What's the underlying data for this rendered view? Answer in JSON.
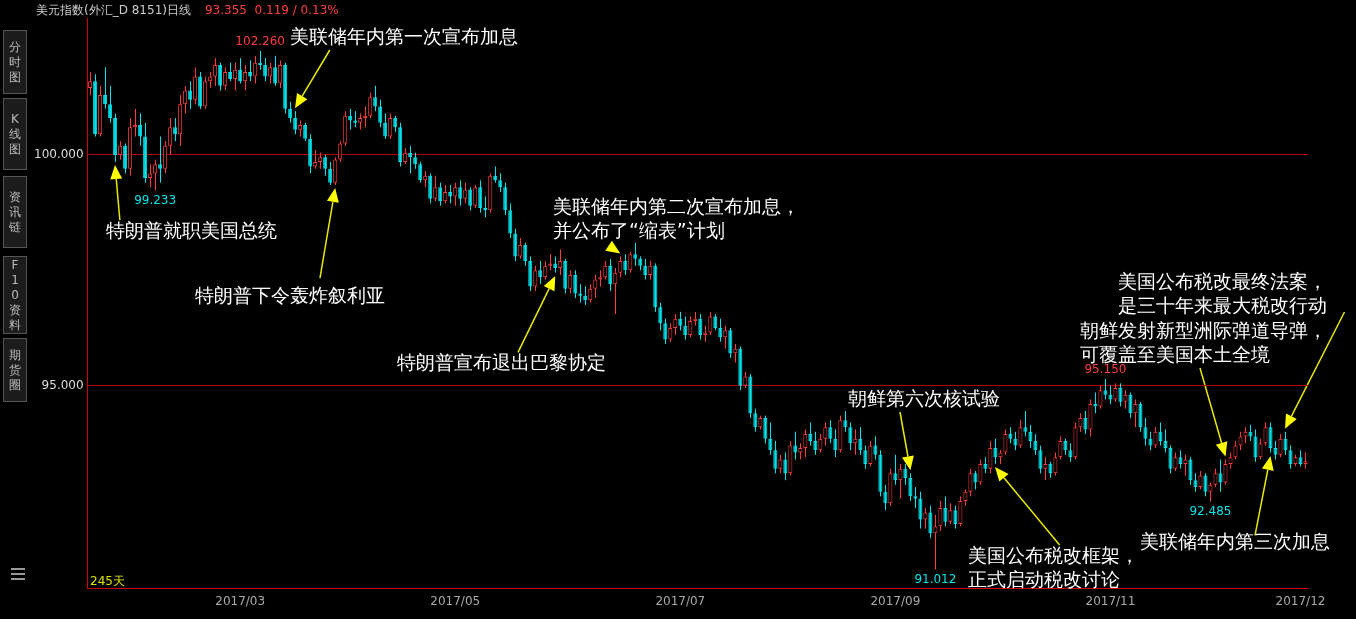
{
  "chart_data": {
    "type": "candlestick",
    "title": "美元指数(外汇_D 8151)日线",
    "subtitle": "93.355  0.119 / 0.13%",
    "categories": [
      null,
      null,
      null,
      null,
      null,
      null,
      null,
      null,
      null,
      null,
      null,
      null,
      null,
      null,
      null,
      null,
      null,
      null,
      null,
      null,
      null,
      null,
      null,
      null,
      null,
      null,
      null,
      null,
      null,
      null,
      "2017/03",
      null,
      null,
      null,
      null,
      null,
      null,
      null,
      null,
      null,
      null,
      null,
      null,
      null,
      null,
      null,
      null,
      null,
      null,
      null,
      null,
      null,
      null,
      null,
      null,
      null,
      null,
      null,
      null,
      null,
      null,
      null,
      null,
      null,
      null,
      null,
      null,
      null,
      null,
      null,
      null,
      null,
      null,
      "2017/05",
      null,
      null,
      null,
      null,
      null,
      null,
      null,
      null,
      null,
      null,
      null,
      null,
      null,
      null,
      null,
      null,
      null,
      null,
      null,
      null,
      null,
      null,
      null,
      null,
      null,
      null,
      null,
      null,
      null,
      null,
      null,
      null,
      null,
      null,
      null,
      null,
      null,
      null,
      null,
      null,
      null,
      null,
      null,
      null,
      "2017/07",
      null,
      null,
      null,
      null,
      null,
      null,
      null,
      null,
      null,
      null,
      null,
      null,
      null,
      null,
      null,
      null,
      null,
      null,
      null,
      null,
      null,
      null,
      null,
      null,
      null,
      null,
      null,
      null,
      null,
      null,
      null,
      null,
      null,
      null,
      null,
      null,
      null,
      null,
      null,
      null,
      null,
      null,
      "2017/09",
      null,
      null,
      null,
      null,
      null,
      null,
      null,
      null,
      null,
      null,
      null,
      null,
      null,
      null,
      null,
      null,
      null,
      null,
      null,
      null,
      null,
      null,
      null,
      null,
      null,
      null,
      null,
      null,
      null,
      null,
      null,
      null,
      null,
      null,
      null,
      null,
      null,
      null,
      null,
      null,
      null,
      null,
      "2017/11",
      null,
      null,
      null,
      null,
      null,
      null,
      null,
      null,
      null,
      null,
      null,
      null,
      null,
      null,
      null,
      null,
      null,
      null,
      null,
      null,
      null,
      null,
      null,
      null,
      null,
      null,
      null,
      null,
      null,
      null,
      null,
      null,
      null,
      null,
      null,
      null,
      null,
      "2017/12",
      null
    ],
    "ohlc": [
      [
        101.45,
        101.8,
        101.3,
        101.6
      ],
      [
        101.6,
        101.75,
        100.4,
        100.45
      ],
      [
        100.45,
        101.5,
        100.4,
        101.3
      ],
      [
        101.3,
        101.9,
        101.0,
        101.1
      ],
      [
        101.1,
        101.5,
        100.7,
        100.8
      ],
      [
        100.8,
        100.9,
        99.85,
        100.0
      ],
      [
        100.0,
        100.3,
        99.9,
        100.2
      ],
      [
        100.2,
        100.25,
        99.6,
        99.7
      ],
      [
        99.7,
        100.8,
        99.55,
        100.6
      ],
      [
        100.6,
        101.0,
        100.4,
        100.65
      ],
      [
        100.65,
        100.9,
        100.2,
        100.4
      ],
      [
        100.4,
        100.7,
        99.4,
        99.5
      ],
      [
        99.5,
        99.8,
        99.3,
        99.6
      ],
      [
        99.6,
        99.9,
        99.233,
        99.8
      ],
      [
        99.8,
        100.4,
        99.4,
        99.7
      ],
      [
        99.7,
        100.3,
        99.6,
        100.2
      ],
      [
        100.2,
        100.8,
        100.0,
        100.6
      ],
      [
        100.6,
        100.8,
        100.3,
        100.45
      ],
      [
        100.45,
        101.3,
        100.2,
        101.1
      ],
      [
        101.1,
        101.5,
        100.9,
        101.4
      ],
      [
        101.4,
        101.6,
        101.0,
        101.2
      ],
      [
        101.2,
        101.9,
        101.1,
        101.7
      ],
      [
        101.7,
        101.8,
        101.0,
        101.05
      ],
      [
        101.05,
        101.7,
        101.0,
        101.6
      ],
      [
        101.6,
        101.8,
        101.45,
        101.7
      ],
      [
        101.7,
        102.1,
        101.5,
        101.95
      ],
      [
        101.95,
        102.0,
        101.4,
        101.5
      ],
      [
        101.5,
        101.9,
        101.4,
        101.8
      ],
      [
        101.8,
        102.0,
        101.6,
        101.65
      ],
      [
        101.65,
        102.0,
        101.4,
        101.85
      ],
      [
        101.85,
        102.1,
        101.55,
        101.6
      ],
      [
        101.6,
        101.95,
        101.4,
        101.8
      ],
      [
        101.8,
        102.05,
        101.6,
        101.7
      ],
      [
        101.7,
        102.15,
        101.55,
        102.0
      ],
      [
        102.0,
        102.26,
        101.85,
        101.95
      ],
      [
        101.95,
        102.1,
        101.6,
        101.7
      ],
      [
        101.7,
        102.0,
        101.55,
        101.9
      ],
      [
        101.9,
        102.15,
        101.5,
        101.55
      ],
      [
        101.55,
        102.05,
        101.45,
        101.95
      ],
      [
        101.95,
        102.0,
        100.9,
        101.0
      ],
      [
        101.0,
        101.15,
        100.7,
        100.8
      ],
      [
        100.8,
        100.95,
        100.45,
        100.55
      ],
      [
        100.55,
        100.75,
        100.4,
        100.65
      ],
      [
        100.65,
        100.7,
        100.3,
        100.35
      ],
      [
        100.35,
        100.45,
        99.6,
        99.75
      ],
      [
        99.75,
        100.1,
        99.7,
        99.85
      ],
      [
        99.85,
        100.05,
        99.7,
        99.95
      ],
      [
        99.95,
        100.0,
        99.55,
        99.7
      ],
      [
        99.7,
        99.85,
        99.35,
        99.4
      ],
      [
        99.4,
        99.95,
        99.35,
        99.9
      ],
      [
        99.9,
        100.3,
        99.85,
        100.25
      ],
      [
        100.25,
        100.95,
        100.2,
        100.85
      ],
      [
        100.85,
        101.0,
        100.55,
        100.75
      ],
      [
        100.75,
        100.95,
        100.6,
        100.7
      ],
      [
        100.7,
        100.9,
        100.55,
        100.8
      ],
      [
        100.8,
        101.05,
        100.6,
        100.85
      ],
      [
        100.85,
        101.35,
        100.8,
        101.25
      ],
      [
        101.25,
        101.5,
        100.95,
        101.05
      ],
      [
        101.05,
        101.2,
        100.6,
        100.7
      ],
      [
        100.7,
        100.9,
        100.35,
        100.4
      ],
      [
        100.4,
        100.9,
        100.35,
        100.8
      ],
      [
        100.8,
        100.85,
        100.5,
        100.6
      ],
      [
        100.6,
        100.7,
        99.75,
        99.85
      ],
      [
        99.85,
        100.15,
        99.8,
        100.05
      ],
      [
        100.05,
        100.2,
        99.6,
        99.95
      ],
      [
        99.95,
        100.05,
        99.7,
        99.8
      ],
      [
        99.8,
        99.85,
        99.4,
        99.45
      ],
      [
        99.45,
        99.65,
        99.3,
        99.55
      ],
      [
        99.55,
        99.6,
        98.95,
        99.05
      ],
      [
        99.05,
        99.55,
        99.0,
        99.3
      ],
      [
        99.3,
        99.4,
        98.9,
        99.0
      ],
      [
        99.0,
        99.35,
        98.95,
        99.2
      ],
      [
        99.2,
        99.35,
        98.95,
        99.1
      ],
      [
        99.1,
        99.4,
        98.9,
        99.3
      ],
      [
        99.3,
        99.45,
        98.9,
        99.05
      ],
      [
        99.05,
        99.4,
        98.95,
        99.25
      ],
      [
        99.25,
        99.3,
        98.8,
        98.9
      ],
      [
        98.9,
        99.35,
        98.85,
        99.3
      ],
      [
        99.3,
        99.45,
        98.75,
        98.85
      ],
      [
        98.85,
        99.1,
        98.65,
        98.8
      ],
      [
        98.8,
        99.6,
        98.75,
        99.55
      ],
      [
        99.55,
        99.75,
        99.4,
        99.45
      ],
      [
        99.45,
        99.6,
        99.2,
        99.3
      ],
      [
        99.3,
        99.4,
        98.7,
        98.8
      ],
      [
        98.8,
        98.95,
        98.2,
        98.3
      ],
      [
        98.3,
        98.4,
        97.7,
        97.8
      ],
      [
        97.8,
        98.2,
        97.75,
        98.05
      ],
      [
        98.05,
        98.1,
        97.6,
        97.7
      ],
      [
        97.7,
        97.8,
        97.05,
        97.15
      ],
      [
        97.15,
        97.6,
        97.05,
        97.5
      ],
      [
        97.5,
        97.7,
        97.2,
        97.35
      ],
      [
        97.35,
        97.7,
        97.3,
        97.6
      ],
      [
        97.6,
        97.85,
        97.5,
        97.65
      ],
      [
        97.65,
        97.8,
        97.45,
        97.55
      ],
      [
        97.55,
        97.95,
        97.4,
        97.7
      ],
      [
        97.7,
        97.75,
        97.0,
        97.1
      ],
      [
        97.1,
        97.5,
        97.0,
        97.4
      ],
      [
        97.4,
        97.5,
        96.9,
        97.0
      ],
      [
        97.0,
        97.2,
        96.8,
        96.95
      ],
      [
        96.95,
        97.15,
        96.75,
        96.85
      ],
      [
        96.85,
        97.2,
        96.8,
        97.1
      ],
      [
        97.1,
        97.4,
        96.9,
        97.3
      ],
      [
        97.3,
        97.5,
        97.15,
        97.35
      ],
      [
        97.35,
        97.7,
        97.3,
        97.6
      ],
      [
        97.6,
        97.75,
        97.05,
        97.2
      ],
      [
        97.2,
        97.55,
        96.55,
        97.45
      ],
      [
        97.45,
        97.8,
        97.35,
        97.7
      ],
      [
        97.7,
        97.85,
        97.4,
        97.5
      ],
      [
        97.5,
        97.9,
        97.45,
        97.85
      ],
      [
        97.85,
        98.1,
        97.6,
        97.75
      ],
      [
        97.75,
        97.8,
        97.5,
        97.6
      ],
      [
        97.6,
        97.75,
        97.3,
        97.4
      ],
      [
        97.4,
        97.7,
        97.3,
        97.6
      ],
      [
        97.6,
        97.65,
        96.6,
        96.7
      ],
      [
        96.7,
        96.8,
        96.2,
        96.35
      ],
      [
        96.35,
        96.45,
        95.9,
        96.0
      ],
      [
        96.0,
        96.35,
        95.95,
        96.25
      ],
      [
        96.25,
        96.55,
        96.1,
        96.45
      ],
      [
        96.45,
        96.6,
        96.2,
        96.3
      ],
      [
        96.3,
        96.5,
        96.0,
        96.1
      ],
      [
        96.1,
        96.5,
        96.05,
        96.4
      ],
      [
        96.4,
        96.6,
        96.3,
        96.45
      ],
      [
        96.45,
        96.55,
        96.0,
        96.1
      ],
      [
        96.1,
        96.3,
        95.95,
        96.15
      ],
      [
        96.15,
        96.6,
        96.1,
        96.5
      ],
      [
        96.5,
        96.55,
        96.2,
        96.25
      ],
      [
        96.25,
        96.45,
        95.95,
        96.05
      ],
      [
        96.05,
        96.3,
        95.8,
        96.2
      ],
      [
        96.2,
        96.25,
        95.6,
        95.7
      ],
      [
        95.7,
        95.9,
        95.5,
        95.8
      ],
      [
        95.8,
        95.85,
        94.9,
        95.0
      ],
      [
        95.0,
        95.3,
        94.95,
        95.2
      ],
      [
        95.2,
        95.25,
        94.3,
        94.4
      ],
      [
        94.4,
        94.5,
        94.0,
        94.1
      ],
      [
        94.1,
        94.35,
        94.05,
        94.3
      ],
      [
        94.3,
        94.35,
        93.75,
        93.85
      ],
      [
        93.85,
        94.2,
        93.5,
        93.6
      ],
      [
        93.6,
        93.8,
        93.1,
        93.2
      ],
      [
        93.2,
        93.5,
        93.1,
        93.4
      ],
      [
        93.4,
        93.55,
        92.95,
        93.1
      ],
      [
        93.1,
        93.8,
        93.05,
        93.7
      ],
      [
        93.7,
        94.0,
        93.4,
        93.55
      ],
      [
        93.55,
        93.75,
        93.4,
        93.65
      ],
      [
        93.65,
        94.05,
        93.45,
        93.95
      ],
      [
        93.95,
        94.2,
        93.7,
        93.8
      ],
      [
        93.8,
        94.0,
        93.5,
        93.6
      ],
      [
        93.6,
        93.95,
        93.55,
        93.85
      ],
      [
        93.85,
        94.2,
        93.7,
        94.1
      ],
      [
        94.1,
        94.25,
        93.75,
        93.85
      ],
      [
        93.85,
        94.05,
        93.45,
        93.6
      ],
      [
        93.6,
        94.35,
        93.55,
        94.25
      ],
      [
        94.25,
        94.45,
        94.0,
        94.1
      ],
      [
        94.1,
        94.2,
        93.6,
        93.75
      ],
      [
        93.75,
        94.05,
        93.5,
        93.85
      ],
      [
        93.85,
        94.1,
        93.5,
        93.6
      ],
      [
        93.6,
        93.7,
        93.2,
        93.3
      ],
      [
        93.3,
        93.8,
        93.25,
        93.7
      ],
      [
        93.7,
        93.9,
        93.4,
        93.5
      ],
      [
        93.5,
        93.6,
        92.6,
        92.7
      ],
      [
        92.7,
        92.85,
        92.3,
        92.45
      ],
      [
        92.45,
        93.2,
        92.4,
        93.1
      ],
      [
        93.1,
        93.5,
        92.85,
        92.95
      ],
      [
        92.95,
        93.3,
        92.55,
        93.2
      ],
      [
        93.2,
        93.3,
        92.85,
        93.0
      ],
      [
        93.0,
        93.1,
        92.5,
        92.6
      ],
      [
        92.6,
        92.8,
        92.35,
        92.55
      ],
      [
        92.55,
        92.7,
        91.9,
        92.1
      ],
      [
        92.1,
        92.35,
        91.9,
        92.25
      ],
      [
        92.25,
        92.4,
        91.7,
        91.8
      ],
      [
        91.8,
        92.2,
        91.012,
        91.95
      ],
      [
        91.95,
        92.5,
        91.85,
        92.35
      ],
      [
        92.35,
        92.6,
        91.95,
        92.05
      ],
      [
        92.05,
        92.45,
        92.0,
        92.3
      ],
      [
        92.3,
        92.4,
        91.9,
        92.0
      ],
      [
        92.0,
        92.6,
        91.95,
        92.5
      ],
      [
        92.5,
        92.75,
        92.4,
        92.7
      ],
      [
        92.7,
        93.2,
        92.6,
        93.1
      ],
      [
        93.1,
        93.15,
        92.75,
        92.9
      ],
      [
        92.9,
        93.4,
        92.85,
        93.3
      ],
      [
        93.3,
        93.45,
        93.1,
        93.2
      ],
      [
        93.2,
        93.8,
        93.1,
        93.65
      ],
      [
        93.65,
        93.85,
        93.3,
        93.45
      ],
      [
        93.45,
        93.6,
        93.3,
        93.55
      ],
      [
        93.55,
        94.05,
        93.5,
        93.95
      ],
      [
        93.95,
        94.1,
        93.75,
        93.85
      ],
      [
        93.85,
        94.0,
        93.6,
        93.7
      ],
      [
        93.7,
        94.25,
        93.65,
        94.1
      ],
      [
        94.1,
        94.45,
        93.9,
        94.0
      ],
      [
        94.0,
        94.15,
        93.65,
        93.8
      ],
      [
        93.8,
        93.95,
        93.5,
        93.6
      ],
      [
        93.6,
        93.7,
        93.1,
        93.2
      ],
      [
        93.2,
        93.45,
        92.95,
        93.3
      ],
      [
        93.3,
        93.35,
        93.0,
        93.1
      ],
      [
        93.1,
        93.55,
        93.05,
        93.45
      ],
      [
        93.45,
        93.9,
        93.4,
        93.8
      ],
      [
        93.8,
        93.85,
        93.5,
        93.6
      ],
      [
        93.6,
        93.75,
        93.35,
        93.45
      ],
      [
        93.45,
        94.2,
        93.4,
        94.1
      ],
      [
        94.1,
        94.4,
        94.0,
        94.3
      ],
      [
        94.3,
        94.45,
        93.95,
        94.05
      ],
      [
        94.05,
        94.7,
        93.9,
        94.6
      ],
      [
        94.6,
        94.85,
        94.4,
        94.55
      ],
      [
        94.55,
        95.0,
        94.5,
        94.9
      ],
      [
        94.9,
        95.15,
        94.7,
        94.8
      ],
      [
        94.8,
        95.0,
        94.6,
        94.7
      ],
      [
        94.7,
        95.05,
        94.65,
        94.95
      ],
      [
        94.95,
        95.05,
        94.55,
        94.65
      ],
      [
        94.65,
        94.9,
        94.5,
        94.8
      ],
      [
        94.8,
        94.85,
        94.3,
        94.4
      ],
      [
        94.4,
        94.7,
        94.1,
        94.6
      ],
      [
        94.6,
        94.65,
        94.0,
        94.1
      ],
      [
        94.1,
        94.3,
        93.7,
        93.85
      ],
      [
        93.85,
        94.0,
        93.6,
        93.7
      ],
      [
        93.7,
        94.1,
        93.65,
        94.0
      ],
      [
        94.0,
        94.2,
        93.7,
        93.8
      ],
      [
        93.8,
        94.05,
        93.55,
        93.65
      ],
      [
        93.65,
        93.7,
        93.1,
        93.2
      ],
      [
        93.2,
        93.55,
        93.15,
        93.45
      ],
      [
        93.45,
        93.6,
        93.2,
        93.3
      ],
      [
        93.3,
        93.5,
        93.05,
        93.4
      ],
      [
        93.4,
        93.45,
        92.85,
        92.95
      ],
      [
        92.95,
        93.1,
        92.7,
        92.8
      ],
      [
        92.8,
        93.15,
        92.75,
        93.05
      ],
      [
        93.05,
        93.1,
        92.6,
        92.7
      ],
      [
        92.7,
        92.9,
        92.485,
        92.85
      ],
      [
        92.85,
        93.2,
        92.8,
        93.1
      ],
      [
        93.1,
        93.4,
        92.7,
        92.9
      ],
      [
        92.9,
        93.4,
        92.85,
        93.3
      ],
      [
        93.3,
        93.55,
        93.2,
        93.45
      ],
      [
        93.45,
        93.8,
        93.4,
        93.7
      ],
      [
        93.7,
        94.0,
        93.6,
        93.9
      ],
      [
        93.9,
        94.1,
        93.75,
        94.0
      ],
      [
        94.0,
        94.15,
        93.8,
        93.9
      ],
      [
        93.9,
        94.05,
        93.35,
        93.45
      ],
      [
        93.45,
        93.85,
        93.4,
        93.75
      ],
      [
        93.75,
        94.2,
        93.7,
        94.1
      ],
      [
        94.1,
        94.2,
        93.55,
        93.65
      ],
      [
        93.65,
        93.8,
        93.4,
        93.5
      ],
      [
        93.5,
        93.95,
        93.45,
        93.85
      ],
      [
        93.85,
        94.0,
        93.5,
        93.6
      ],
      [
        93.6,
        93.7,
        93.2,
        93.3
      ],
      [
        93.3,
        93.5,
        93.25,
        93.45
      ],
      [
        93.45,
        93.6,
        93.25,
        93.3
      ],
      [
        93.3,
        93.55,
        93.2,
        93.36
      ]
    ],
    "ylim": [
      90.6,
      102.97
    ],
    "yticks": [
      {
        "value": 100,
        "label": "100.000"
      },
      {
        "value": 95,
        "label": "95.000"
      }
    ],
    "grid": "y",
    "legend": false,
    "annotations": [
      "美联储年内第一次宣布加息",
      "特朗普就职美国总统",
      "特朗普下令轰炸叙利亚",
      "美联储年内第二次宣布加息，并公布了“缩表”计划",
      "特朗普宣布退出巴黎协定",
      "朝鲜第六次核试验",
      "美国公布税改框架，正式启动税改讨论",
      "美国公布税改最终法案，是三十年来最大税改行动",
      "朝鲜发射新型洲际弹道导弹，可覆盖至美国本土全境",
      "美联储年内第三次加息",
      "245天",
      "分时图",
      "K线图",
      "资讯链",
      "F10资料",
      "期货圈",
      {
        "text": "102.260",
        "y": 102.26
      },
      {
        "text": "99.233",
        "y": 99.233
      },
      {
        "text": "95.150",
        "y": 95.15
      },
      {
        "text": "92.485",
        "y": 92.485
      },
      {
        "text": "91.012",
        "y": 91.012
      }
    ]
  }
}
